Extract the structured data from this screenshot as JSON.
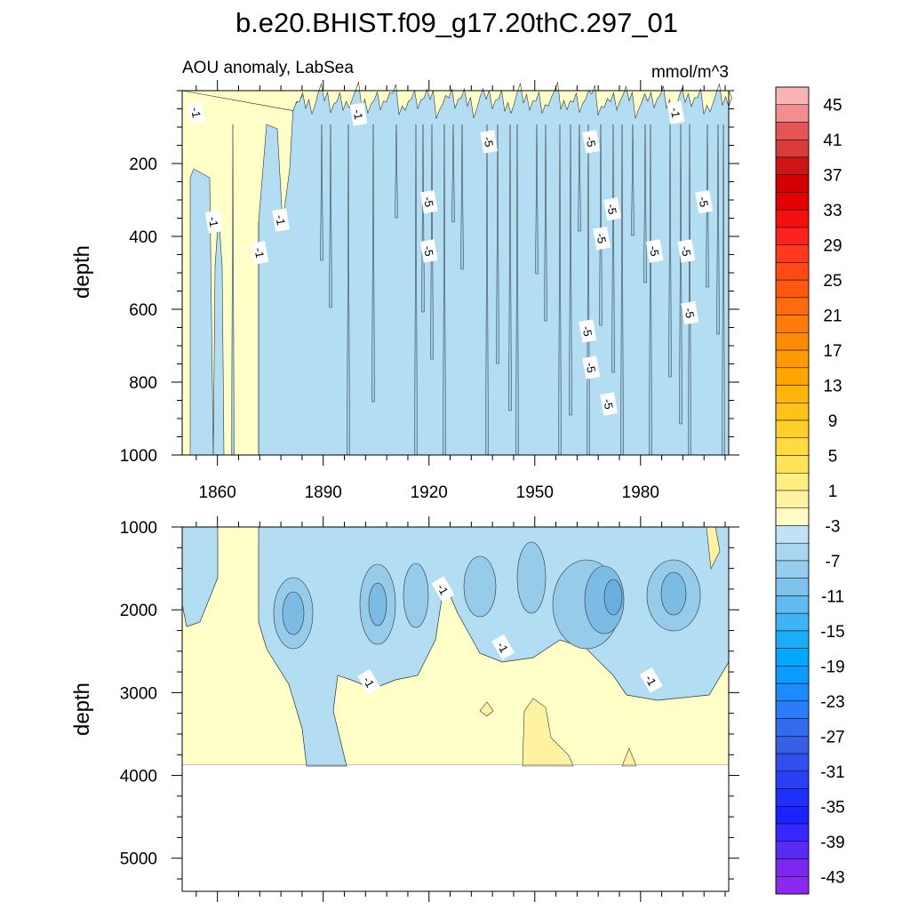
{
  "chart_data": {
    "type": "heatmap",
    "title": "b.e20.BHIST.f09_g17.20thC.297_01",
    "subtitle_left": "AOU anomaly, LabSea",
    "subtitle_right": "mmol/m^3",
    "ylabel": "depth",
    "xlim": [
      1850,
      2005
    ],
    "x_tick_labels": [
      "1860",
      "1890",
      "1920",
      "1950",
      "1980"
    ],
    "x_tick_values": [
      1860,
      1890,
      1920,
      1950,
      1980
    ],
    "top_panel": {
      "ylim": [
        0,
        1000
      ],
      "y_tick_labels": [
        "200",
        "400",
        "600",
        "800",
        "1000"
      ],
      "y_tick_values": [
        200,
        400,
        600,
        800,
        1000
      ],
      "contour_labels": [
        {
          "text": "-1",
          "x": 1854,
          "y": 60
        },
        {
          "text": "-1",
          "x": 1859,
          "y": 360
        },
        {
          "text": "-1",
          "x": 1872,
          "y": 445
        },
        {
          "text": "-1",
          "x": 1878,
          "y": 355
        },
        {
          "text": "-1",
          "x": 1900,
          "y": 65
        },
        {
          "text": "-1",
          "x": 1990,
          "y": 60
        },
        {
          "text": "-5",
          "x": 1937,
          "y": 140
        },
        {
          "text": "-5",
          "x": 1966,
          "y": 140
        },
        {
          "text": "-5",
          "x": 1920,
          "y": 305
        },
        {
          "text": "-5",
          "x": 1920,
          "y": 440
        },
        {
          "text": "-5",
          "x": 1972,
          "y": 325
        },
        {
          "text": "-5",
          "x": 1969,
          "y": 405
        },
        {
          "text": "-5",
          "x": 1984,
          "y": 440
        },
        {
          "text": "-5",
          "x": 1993,
          "y": 440
        },
        {
          "text": "-5",
          "x": 1998,
          "y": 305
        },
        {
          "text": "-5",
          "x": 1994,
          "y": 610
        },
        {
          "text": "-5",
          "x": 1965,
          "y": 660
        },
        {
          "text": "-5",
          "x": 1966,
          "y": 760
        },
        {
          "text": "-5",
          "x": 1971,
          "y": 860
        }
      ]
    },
    "bottom_panel": {
      "ylim": [
        1000,
        5400
      ],
      "y_tick_labels": [
        "1000",
        "2000",
        "3000",
        "4000",
        "5000"
      ],
      "y_tick_values": [
        1000,
        2000,
        3000,
        4000,
        5000
      ],
      "data_bottom_depth": 3870,
      "contour_labels": [
        {
          "text": "-1",
          "x": 1924,
          "y": 1750
        },
        {
          "text": "-1",
          "x": 1941,
          "y": 2450
        },
        {
          "text": "-1",
          "x": 1903,
          "y": 2870
        },
        {
          "text": "-1",
          "x": 1983,
          "y": 2850
        }
      ]
    },
    "colorbar": {
      "levels": [
        -45,
        -43,
        -41,
        -39,
        -37,
        -35,
        -33,
        -31,
        -29,
        -27,
        -25,
        -23,
        -21,
        -19,
        -17,
        -15,
        -13,
        -11,
        -9,
        -7,
        -5,
        -3,
        -1,
        1,
        3,
        5,
        7,
        9,
        11,
        13,
        15,
        17,
        19,
        21,
        23,
        25,
        27,
        29,
        31,
        33,
        35,
        37,
        39,
        41,
        43,
        45
      ],
      "tick_labels": [
        "45",
        "41",
        "37",
        "33",
        "29",
        "25",
        "21",
        "17",
        "13",
        "9",
        "5",
        "1",
        "-3",
        "-7",
        "-11",
        "-15",
        "-19",
        "-23",
        "-27",
        "-31",
        "-35",
        "-39",
        "-43"
      ],
      "colors_top_to_bottom": [
        "#fbb4b4",
        "#f28e8e",
        "#e55555",
        "#d93a3a",
        "#cc1515",
        "#d30000",
        "#e50000",
        "#f51010",
        "#ff2020",
        "#ff3a1a",
        "#ff4a14",
        "#ff5810",
        "#ff6a0c",
        "#ff7a08",
        "#ff8a06",
        "#ff9a04",
        "#ffa500",
        "#ffb40a",
        "#ffc21a",
        "#ffcf2c",
        "#ffda40",
        "#ffe458",
        "#ffee80",
        "#fff2a0",
        "#fffcc4",
        "#bfe2f4",
        "#a9d7f0",
        "#94cdee",
        "#7ec3ec",
        "#5fbbf0",
        "#3fb4f4",
        "#1aaef8",
        "#00a9ff",
        "#0c9cff",
        "#1a8cff",
        "#2a7cf8",
        "#326cee",
        "#345fe6",
        "#3050ee",
        "#2a3ef5",
        "#2030fb",
        "#1a22ff",
        "#3828ff",
        "#5a2af5",
        "#7a28f0",
        "#8c28f0"
      ]
    },
    "colors": {
      "light_blue": "#b3ddf2",
      "mid_blue": "#96cbea",
      "deep_blue": "#7bbbe4",
      "pale_yellow": "#ffffc8",
      "yellow": "#fff2a0",
      "deeper_yellow": "#ffe97f"
    }
  }
}
